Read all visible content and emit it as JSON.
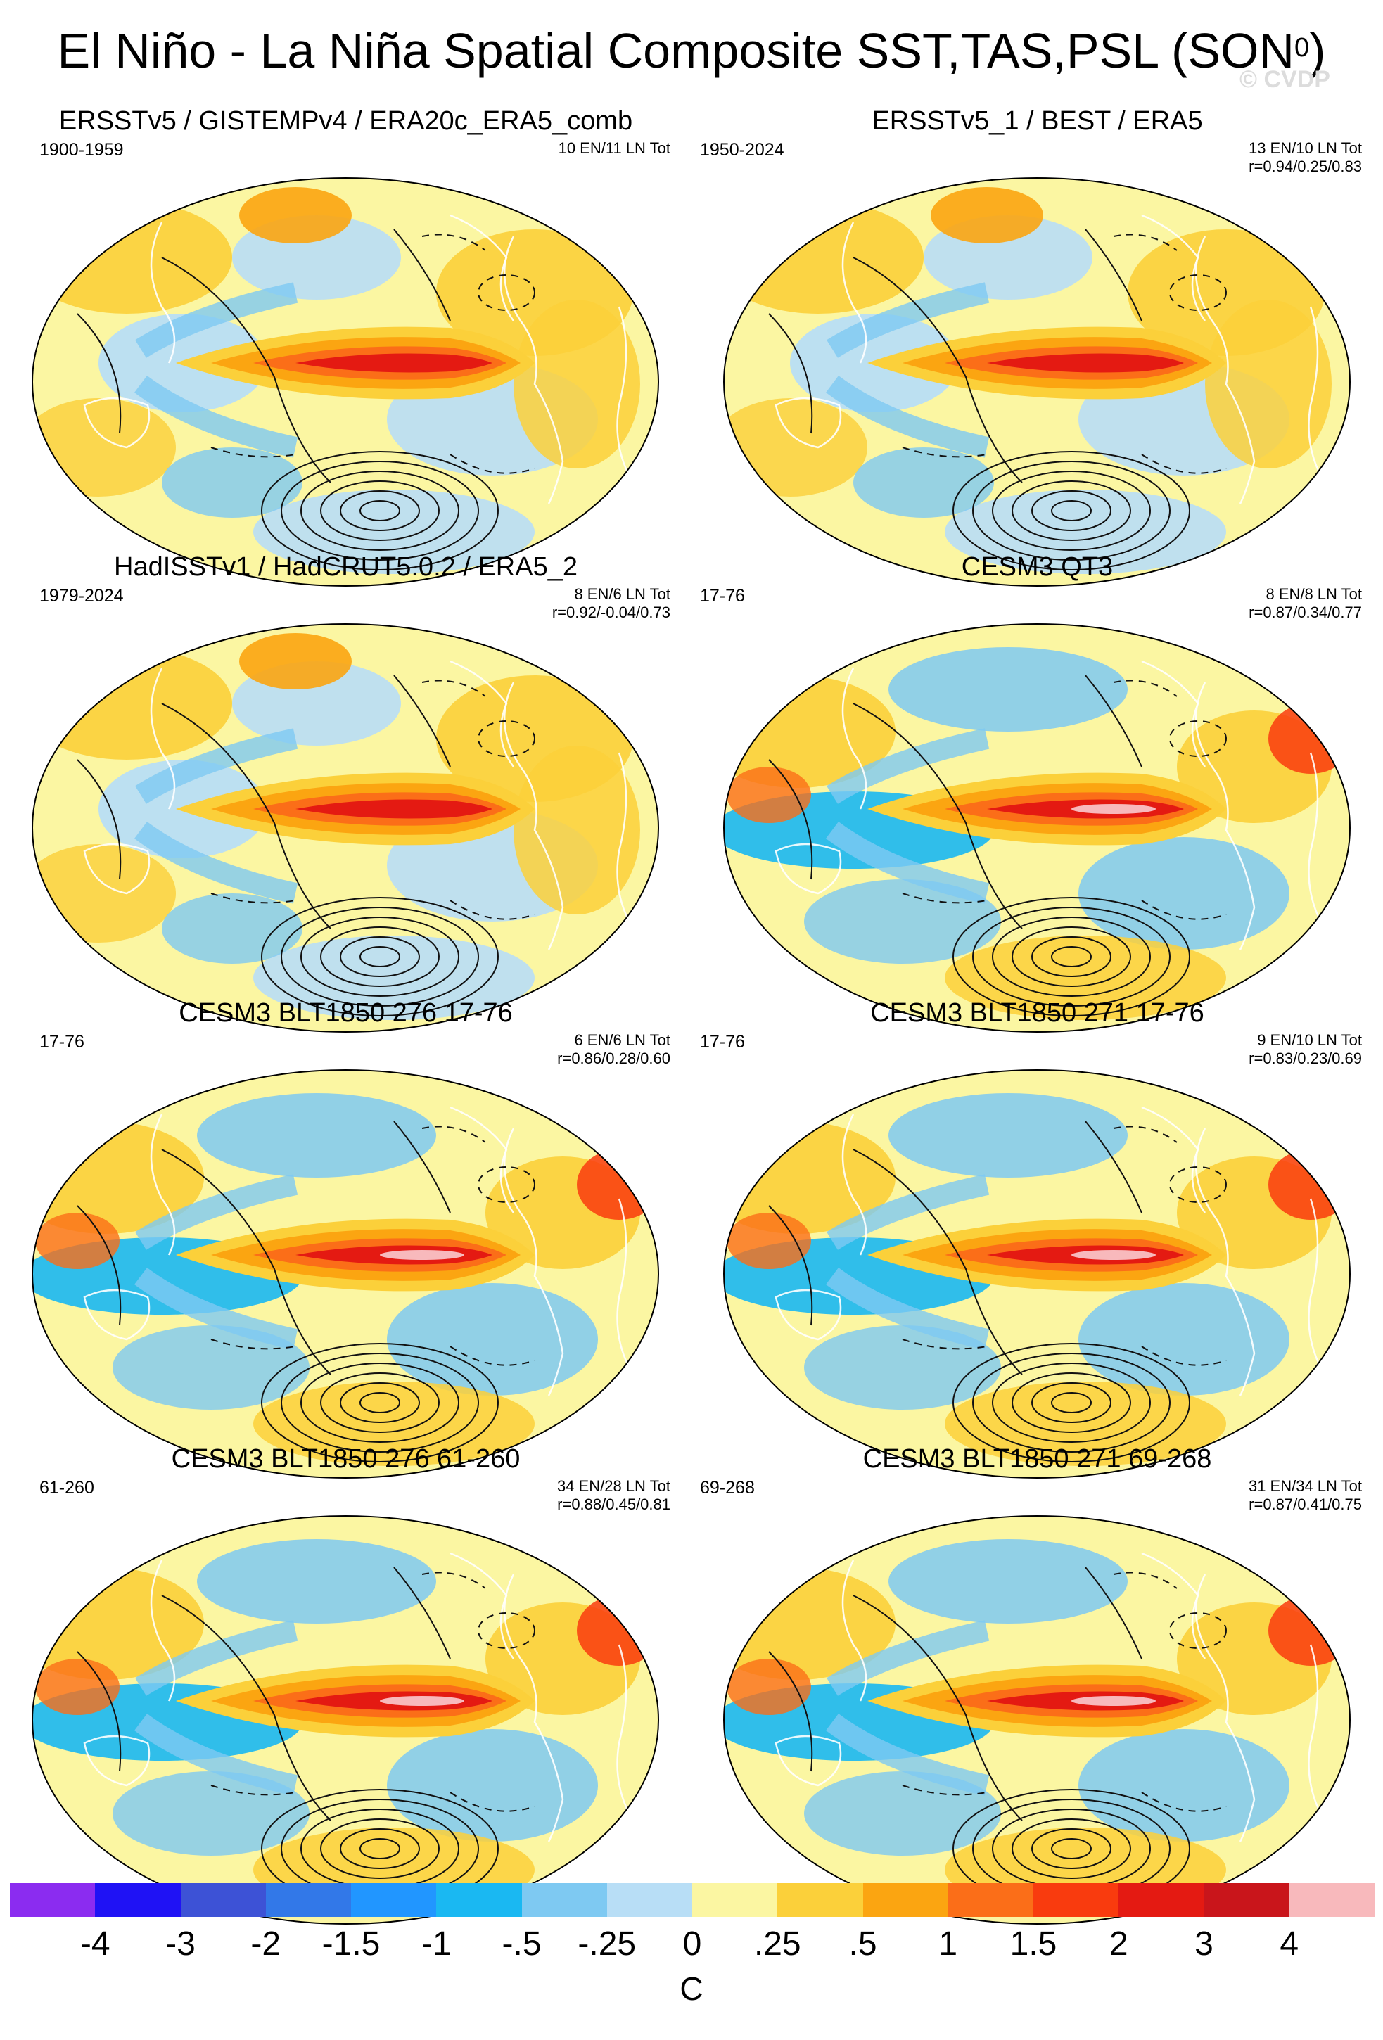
{
  "figure": {
    "title_main": "El Niño - La Niña Spatial Composite SST,TAS,PSL (SON",
    "title_sup": "0",
    "title_close": ")",
    "watermark": "© CVDP"
  },
  "panels": [
    {
      "title": "ERSSTv5 / GISTEMPv4 / ERA20c_ERA5_comb",
      "period": "1900-1959",
      "counts": "10 EN/11 LN Tot",
      "stats": "",
      "style": "obs"
    },
    {
      "title": "ERSSTv5_1 / BEST / ERA5",
      "period": "1950-2024",
      "counts": "13 EN/10 LN Tot",
      "stats": "r=0.94/0.25/0.83",
      "style": "obs"
    },
    {
      "title": "HadISSTv1 / HadCRUT5.0.2 / ERA5_2",
      "period": "1979-2024",
      "counts": "8 EN/6 LN Tot",
      "stats": "r=0.92/-0.04/0.73",
      "style": "obs"
    },
    {
      "title": "CESM3 QT3",
      "period": "17-76",
      "counts": "8 EN/8 LN Tot",
      "stats": "r=0.87/0.34/0.77",
      "style": "model"
    },
    {
      "title": "CESM3 BLT1850 276 17-76",
      "period": "17-76",
      "counts": "6 EN/6 LN Tot",
      "stats": "r=0.86/0.28/0.60",
      "style": "model"
    },
    {
      "title": "CESM3 BLT1850 271 17-76",
      "period": "17-76",
      "counts": "9 EN/10 LN Tot",
      "stats": "r=0.83/0.23/0.69",
      "style": "model"
    },
    {
      "title": "CESM3 BLT1850 276 61-260",
      "period": "61-260",
      "counts": "34 EN/28 LN Tot",
      "stats": "r=0.88/0.45/0.81",
      "style": "model"
    },
    {
      "title": "CESM3 BLT1850 271 69-268",
      "period": "69-268",
      "counts": "31 EN/34 LN Tot",
      "stats": "r=0.87/0.41/0.75",
      "style": "model"
    }
  ],
  "colorbar": {
    "colors": [
      "#8b2cf0",
      "#1f12f5",
      "#3d52d6",
      "#3278e8",
      "#2196ff",
      "#1ab8f2",
      "#7ec9f2",
      "#b8def6",
      "#fbf6a2",
      "#fbd03a",
      "#fba511",
      "#fb6e18",
      "#f93b0e",
      "#e41a12",
      "#c9151b",
      "#f8b9bc"
    ],
    "labels": [
      "-4",
      "-3",
      "-2",
      "-1.5",
      "-1",
      "-.5",
      "-.25",
      "0",
      ".25",
      ".5",
      "1",
      "1.5",
      "2",
      "3",
      "4"
    ],
    "units": "C"
  }
}
